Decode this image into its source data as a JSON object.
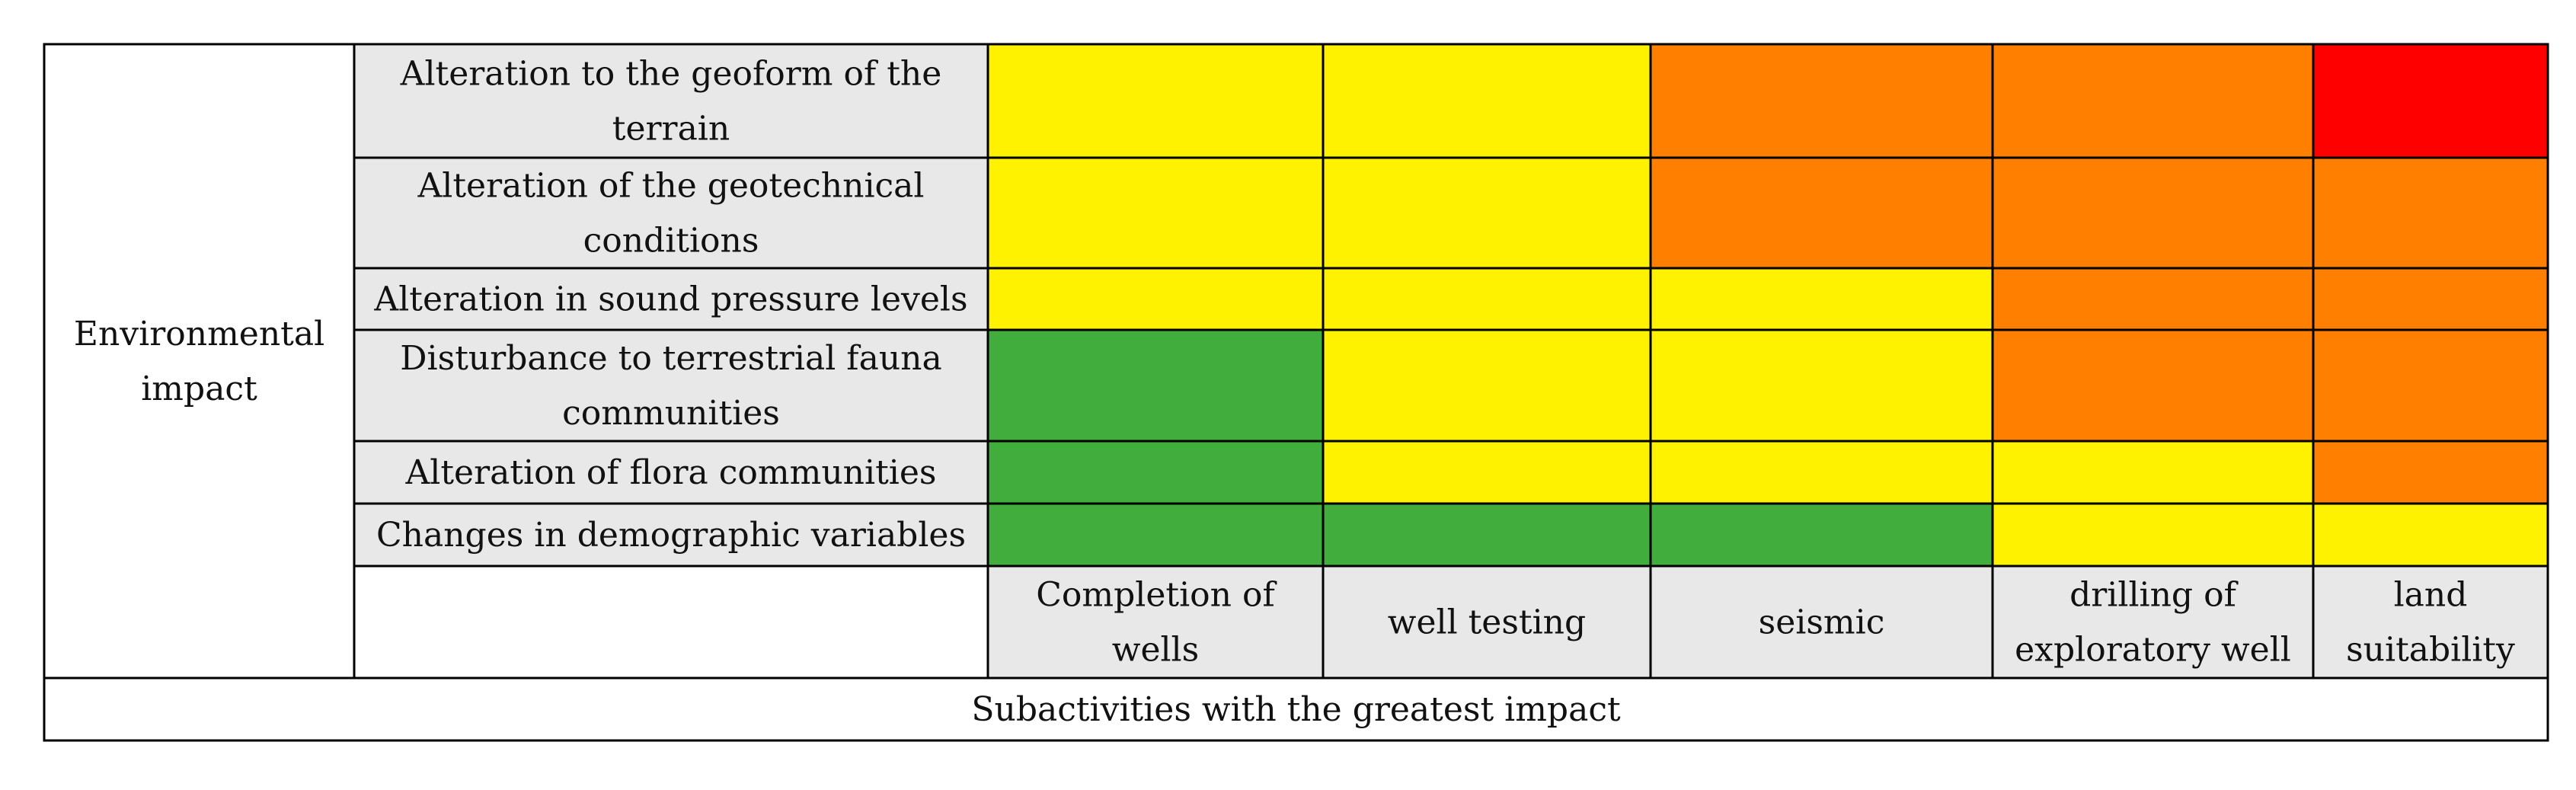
{
  "chart_data": {
    "type": "heatmap",
    "title": "",
    "group_label": "Environmental impact",
    "footer_label": "Subactivities with the greatest impact",
    "rows": [
      "Alteration to the geoform of the terrain",
      "Alteration of the geotechnical conditions",
      "Alteration in sound pressure levels",
      "Disturbance to terrestrial fauna communities",
      "Alteration of flora communities",
      "Changes in demographic variables"
    ],
    "columns": [
      "Completion of wells",
      "well testing",
      "seismic",
      "drilling of exploratory well",
      "land suitability"
    ],
    "levels": {
      "G": "#41ad3c",
      "Y": "#fff200",
      "O": "#ff8000",
      "R": "#ff0000"
    },
    "values": [
      [
        "Y",
        "Y",
        "O",
        "O",
        "R"
      ],
      [
        "Y",
        "Y",
        "O",
        "O",
        "O"
      ],
      [
        "Y",
        "Y",
        "Y",
        "O",
        "O"
      ],
      [
        "G",
        "Y",
        "Y",
        "O",
        "O"
      ],
      [
        "G",
        "Y",
        "Y",
        "Y",
        "O"
      ],
      [
        "G",
        "G",
        "G",
        "Y",
        "Y"
      ]
    ],
    "label_background": "#e8e8e8",
    "border_color": "#000000"
  }
}
